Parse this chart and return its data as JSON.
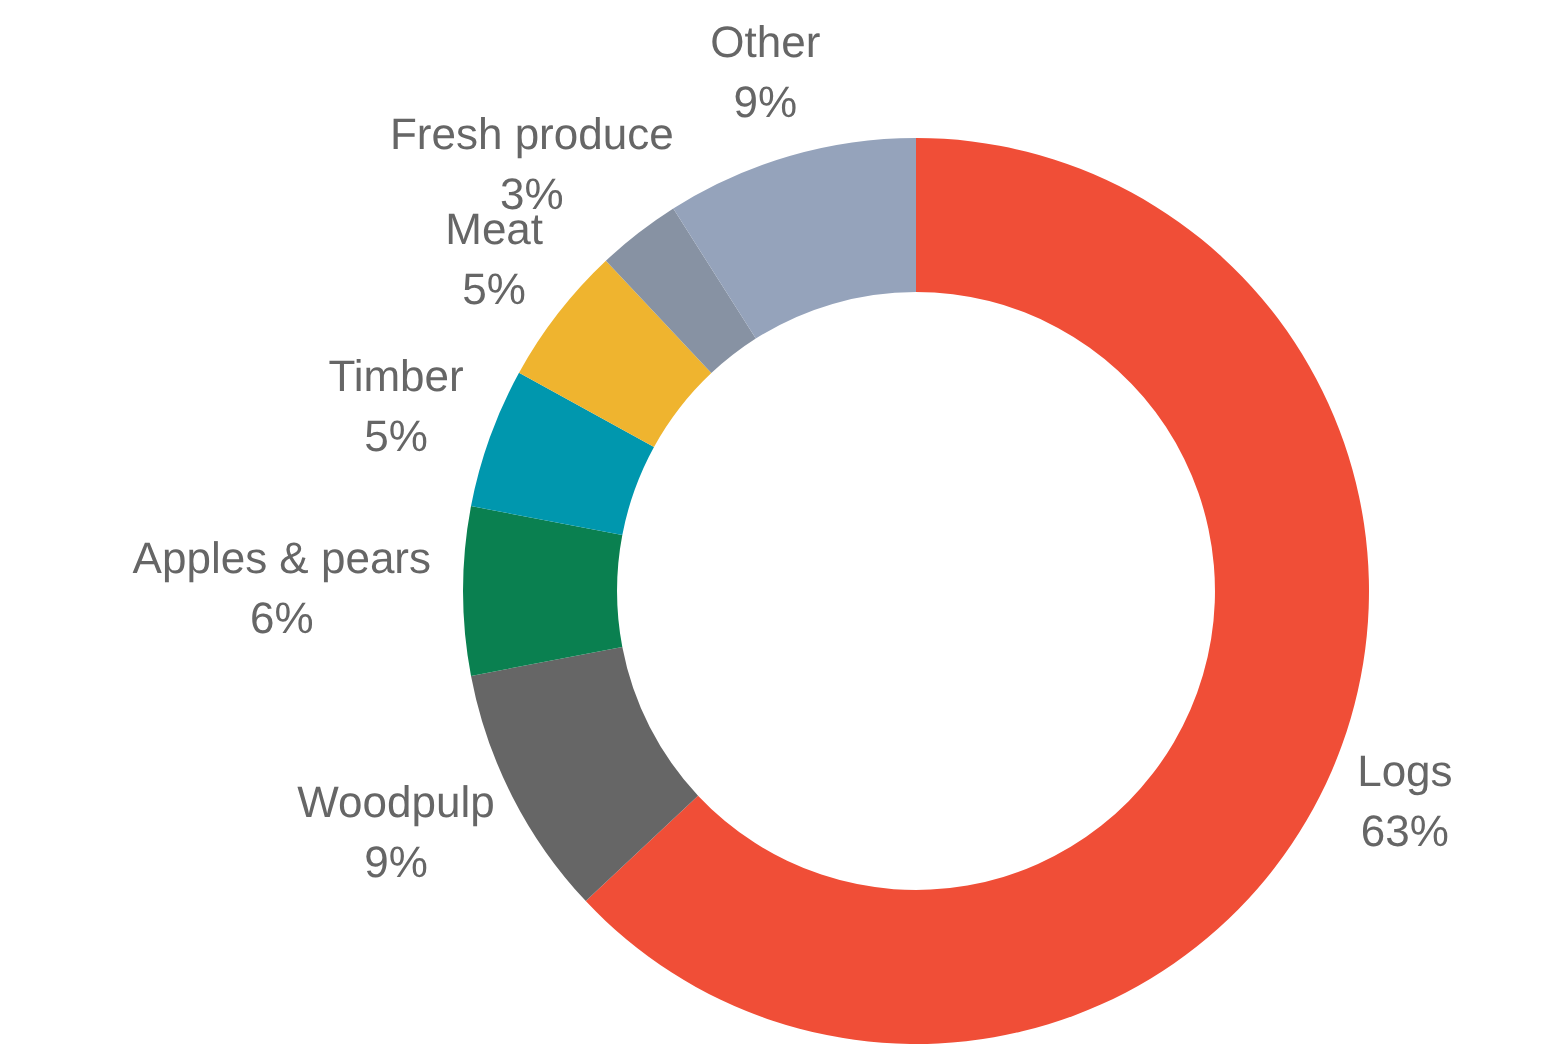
{
  "chart_data": {
    "type": "donut",
    "categories": [
      "Logs",
      "Woodpulp",
      "Apples & pears",
      "Timber",
      "Meat",
      "Fresh produce",
      "Other"
    ],
    "values": [
      63,
      9,
      6,
      5,
      5,
      3,
      9
    ],
    "colors": [
      "#f04e37",
      "#666666",
      "#0a8050",
      "#0097ae",
      "#efb42f",
      "#8792a3",
      "#95a3bb"
    ],
    "value_labels": [
      "63%",
      "9%",
      "6%",
      "5%",
      "5%",
      "3%",
      "9%"
    ],
    "legend": false
  }
}
